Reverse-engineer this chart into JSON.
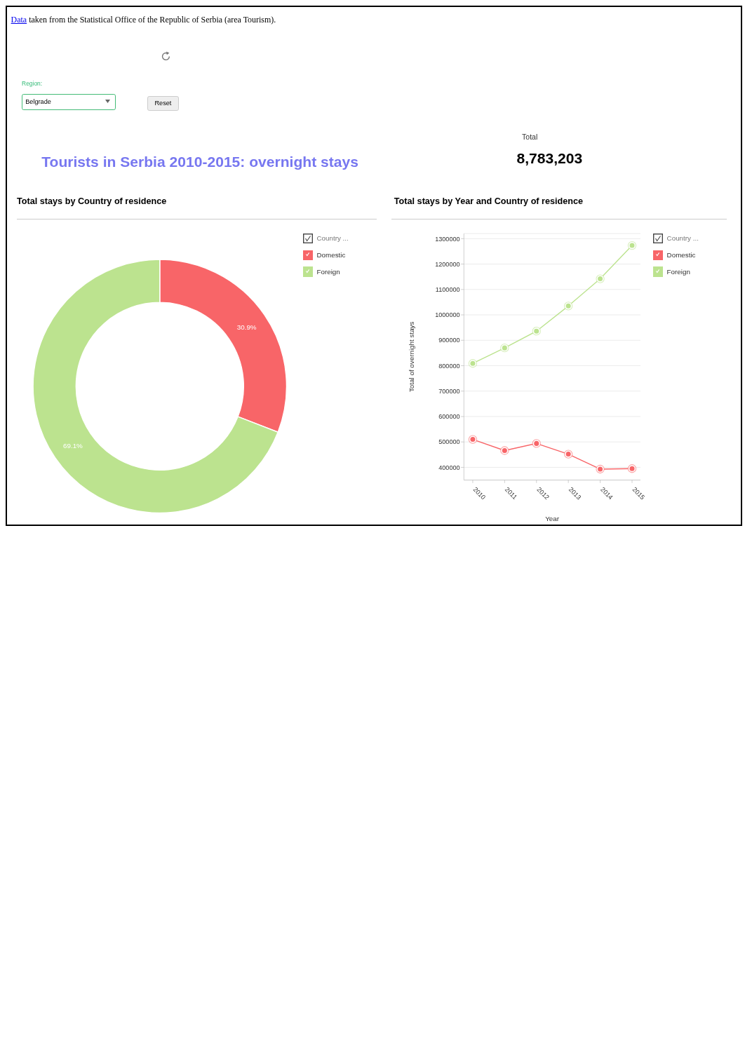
{
  "chart_data": [
    {
      "type": "other",
      "title": "Tourists in Serbia 2010-2015: overnight stays",
      "annotations": [
        "Data taken from the Statistical Office of the Republic of Serbia (area Tourism).",
        "Region:",
        "Belgrade",
        "Reset"
      ]
    },
    {
      "type": "donut",
      "title": "Total stays by Country of residence",
      "categories": [
        "Domestic",
        "Foreign"
      ],
      "values": [
        30.9,
        69.1
      ],
      "colors": [
        "#f86568",
        "#bce38f"
      ],
      "value_labels": [
        "30.9%",
        "69.1%"
      ],
      "legend": "top right",
      "legend_title": "Country ..."
    },
    {
      "type": "other",
      "title": "Total",
      "values": [
        8783203
      ],
      "value_labels": [
        "8,783,203"
      ]
    },
    {
      "type": "line",
      "title": "Total stays by Year and Country of residence",
      "categories": [
        "2010",
        "2011",
        "2012",
        "2013",
        "2014",
        "2015"
      ],
      "xlabel": "Year",
      "ylabel": "Total of overnight stays",
      "ylim": [
        350000,
        1320000
      ],
      "yticks": [
        400000,
        500000,
        600000,
        700000,
        800000,
        900000,
        1000000,
        1100000,
        1200000,
        1300000
      ],
      "grid": "y",
      "marker": "circle",
      "legend": "top right",
      "legend_title": "Country ...",
      "series": [
        {
          "name": "Domestic",
          "color": "#f86568",
          "values": [
            510000,
            466000,
            494000,
            452000,
            393000,
            395000
          ]
        },
        {
          "name": "Foreign",
          "color": "#bce38f",
          "values": [
            809000,
            870000,
            936000,
            1035000,
            1142000,
            1273000
          ]
        }
      ]
    }
  ]
}
